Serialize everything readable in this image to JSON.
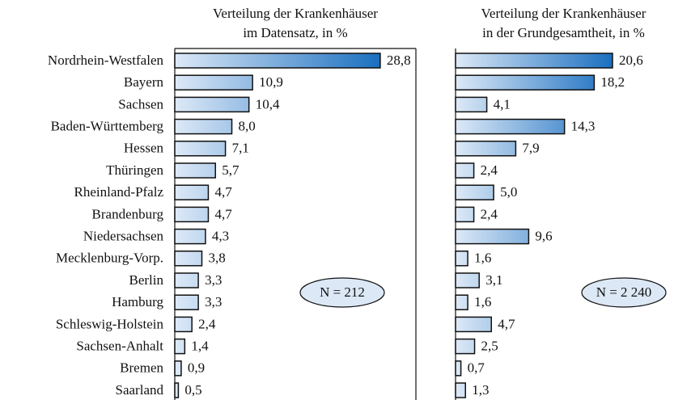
{
  "chart_data": [
    {
      "type": "bar",
      "orientation": "horizontal",
      "title": [
        "Verteilung der Krankenhäuser",
        "im Datensatz, in %"
      ],
      "categories": [
        "Nordrhein-Westfalen",
        "Bayern",
        "Sachsen",
        "Baden-Württemberg",
        "Hessen",
        "Thüringen",
        "Rheinland-Pfalz",
        "Brandenburg",
        "Niedersachsen",
        "Mecklenburg-Vorp.",
        "Berlin",
        "Hamburg",
        "Schleswig-Holstein",
        "Sachsen-Anhalt",
        "Bremen",
        "Saarland"
      ],
      "values": [
        28.8,
        10.9,
        10.4,
        8.0,
        7.1,
        5.7,
        4.7,
        4.7,
        4.3,
        3.8,
        3.3,
        3.3,
        2.4,
        1.4,
        0.9,
        0.5
      ],
      "value_labels": [
        "28,8",
        "10,9",
        "10,4",
        "8,0",
        "7,1",
        "5,7",
        "4,7",
        "4,7",
        "4,3",
        "3,8",
        "3,3",
        "3,3",
        "2,4",
        "1,4",
        "0,9",
        "0,5"
      ],
      "xlim": [
        0,
        33.8
      ],
      "color": "#1a6fc0",
      "annotation": "N = 212"
    },
    {
      "type": "bar",
      "orientation": "horizontal",
      "title": [
        "Verteilung der Krankenhäuser",
        "in der Grundgesamtheit, in %"
      ],
      "values": [
        20.6,
        18.2,
        4.1,
        14.3,
        7.9,
        2.4,
        5.0,
        2.4,
        9.6,
        1.6,
        3.1,
        1.6,
        4.7,
        2.5,
        0.7,
        1.3
      ],
      "value_labels": [
        "20,6",
        "18,2",
        "4,1",
        "14,3",
        "7,9",
        "2,4",
        "5,0",
        "2,4",
        "9,6",
        "1,6",
        "3,1",
        "1,6",
        "4,7",
        "2,5",
        "0,7",
        "1,3"
      ],
      "xlim": [
        0,
        30.9
      ],
      "color": "#1a6fc0",
      "annotation": "N = 2 240"
    }
  ]
}
